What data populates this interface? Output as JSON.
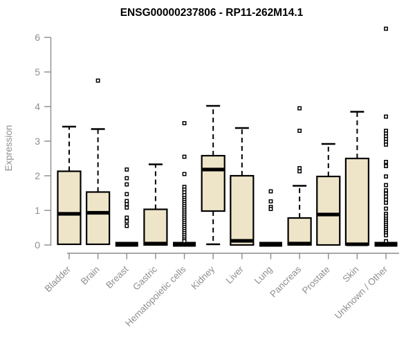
{
  "chart_data": {
    "type": "boxplot",
    "title": "ENSG00000237806 - RP11-262M14.1",
    "ylabel": "Expression",
    "ylim": [
      0,
      6
    ],
    "yticks": [
      0,
      1,
      2,
      3,
      4,
      5,
      6
    ],
    "grid": false,
    "legend": "none",
    "categories": [
      "Bladder",
      "Brain",
      "Breast",
      "Gastric",
      "Hematopoietic cells",
      "Kidney",
      "Liver",
      "Lung",
      "Pancreas",
      "Prostate",
      "Skin",
      "Unknown / Other"
    ],
    "series": [
      {
        "name": "Bladder",
        "q1": 0.02,
        "median": 0.9,
        "q3": 2.13,
        "whisker_low": 0.02,
        "whisker_high": 3.42,
        "outliers": []
      },
      {
        "name": "Brain",
        "q1": 0.02,
        "median": 0.93,
        "q3": 1.53,
        "whisker_low": 0.02,
        "whisker_high": 3.35,
        "outliers": [
          4.75
        ]
      },
      {
        "name": "Breast",
        "q1": 0,
        "median": 0.02,
        "q3": 0.04,
        "whisker_low": 0,
        "whisker_high": 0.04,
        "outliers": [
          2.18,
          1.93,
          1.75,
          1.47,
          1.27,
          1.18,
          1.08,
          0.79,
          0.68,
          0.55
        ]
      },
      {
        "name": "Gastric",
        "q1": 0,
        "median": 0.04,
        "q3": 1.03,
        "whisker_low": 0,
        "whisker_high": 2.33,
        "outliers": []
      },
      {
        "name": "Hematopoietic cells",
        "q1": 0,
        "median": 0.02,
        "q3": 0.04,
        "whisker_low": 0,
        "whisker_high": 0.04,
        "outliers": [
          3.52,
          2.55,
          2.05,
          1.68,
          1.6,
          1.52,
          1.44,
          1.36,
          1.3,
          1.24,
          1.18,
          1.12,
          1.06,
          1.0,
          0.94,
          0.88,
          0.82,
          0.76,
          0.7,
          0.64,
          0.58,
          0.52,
          0.46,
          0.4,
          0.34,
          0.28,
          0.22,
          0.16,
          0.11
        ]
      },
      {
        "name": "Kidney",
        "q1": 0.98,
        "median": 2.18,
        "q3": 2.58,
        "whisker_low": 0.02,
        "whisker_high": 4.02,
        "outliers": []
      },
      {
        "name": "Liver",
        "q1": 0,
        "median": 0.12,
        "q3": 2.0,
        "whisker_low": 0,
        "whisker_high": 3.38,
        "outliers": []
      },
      {
        "name": "Lung",
        "q1": 0,
        "median": 0.02,
        "q3": 0.04,
        "whisker_low": 0,
        "whisker_high": 0.04,
        "outliers": [
          1.55,
          1.26,
          1.1,
          1.04
        ]
      },
      {
        "name": "Pancreas",
        "q1": 0,
        "median": 0.04,
        "q3": 0.78,
        "whisker_low": 0,
        "whisker_high": 1.71,
        "outliers": [
          3.95,
          3.3,
          2.22,
          2.13
        ]
      },
      {
        "name": "Prostate",
        "q1": 0,
        "median": 0.88,
        "q3": 1.98,
        "whisker_low": 0,
        "whisker_high": 2.92,
        "outliers": []
      },
      {
        "name": "Skin",
        "q1": 0,
        "median": 0.02,
        "q3": 2.5,
        "whisker_low": 0,
        "whisker_high": 3.85,
        "outliers": []
      },
      {
        "name": "Unknown / Other",
        "q1": 0,
        "median": 0.02,
        "q3": 0.04,
        "whisker_low": 0,
        "whisker_high": 0.04,
        "outliers": [
          6.25,
          3.71,
          3.3,
          3.22,
          3.14,
          3.06,
          2.98,
          2.9,
          2.4,
          2.28,
          1.98,
          1.73,
          1.58,
          1.48,
          1.4,
          1.31,
          1.22,
          1.05,
          0.9,
          0.83,
          0.76,
          0.7,
          0.64,
          0.58,
          0.52,
          0.46,
          0.4,
          0.34,
          0.28,
          0.11
        ]
      }
    ]
  },
  "colors": {
    "background": "#FFFFFF",
    "box_fill": "#EEE5C9",
    "box_border": "#000000",
    "median": "#000000",
    "whisker": "#000000",
    "outlier_stroke": "#000000",
    "outlier_fill": "#FFFFFF",
    "axis": "#8B8B8B",
    "label": "#8F8F8F",
    "title": "#000000"
  }
}
